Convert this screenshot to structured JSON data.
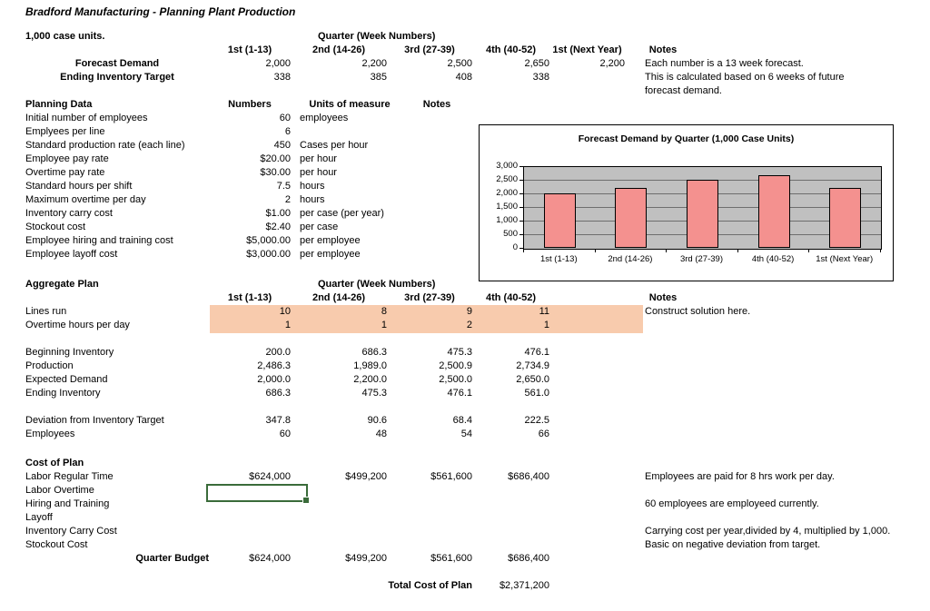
{
  "title": "Bradford Manufacturing - Planning Plant Production",
  "colors": {
    "highlight": "#F8CBAD",
    "selection_border": "#3A6B3A",
    "bar_fill": "#F4918F",
    "plot_bg": "#C0C0C0"
  },
  "forecast": {
    "unit_label": "1,000 case units.",
    "quarter_header": "Quarter (Week Numbers)",
    "columns": [
      "1st (1-13)",
      "2nd (14-26)",
      "3rd (27-39)",
      "4th (40-52)",
      "1st (Next Year)"
    ],
    "notes_header": "Notes",
    "rows": [
      {
        "label": "Forecast Demand",
        "values": [
          "2,000",
          "2,200",
          "2,500",
          "2,650",
          "2,200"
        ],
        "note": "Each number is a 13 week forecast."
      },
      {
        "label": "Ending Inventory Target",
        "values": [
          "338",
          "385",
          "408",
          "338",
          ""
        ],
        "note": "This is calculated based on 6 weeks of future"
      }
    ],
    "note_continuation": "forecast demand."
  },
  "planning": {
    "header": "Planning Data",
    "numbers_header": "Numbers",
    "units_header": "Units of measure",
    "notes_header": "Notes",
    "rows": [
      {
        "label": "Initial number of employees",
        "number": "60",
        "unit": "employees"
      },
      {
        "label": "Emplyees per line",
        "number": "6",
        "unit": ""
      },
      {
        "label": "Standard production rate (each line)",
        "number": "450",
        "unit": "Cases per hour"
      },
      {
        "label": "Employee pay rate",
        "number": "$20.00",
        "unit": "per hour"
      },
      {
        "label": "Overtime pay rate",
        "number": "$30.00",
        "unit": "per hour"
      },
      {
        "label": "Standard hours per shift",
        "number": "7.5",
        "unit": "hours"
      },
      {
        "label": "Maximum overtime per day",
        "number": "2",
        "unit": "hours"
      },
      {
        "label": "Inventory carry cost",
        "number": "$1.00",
        "unit": "per case (per year)"
      },
      {
        "label": "Stockout cost",
        "number": "$2.40",
        "unit": "per case"
      },
      {
        "label": "Employee hiring and training cost",
        "number": "$5,000.00",
        "unit": "per employee"
      },
      {
        "label": "Employee layoff cost",
        "number": "$3,000.00",
        "unit": "per employee"
      }
    ]
  },
  "chart_data": {
    "type": "bar",
    "title": "Forecast Demand by Quarter (1,000 Case Units)",
    "categories": [
      "1st (1-13)",
      "2nd (14-26)",
      "3rd (27-39)",
      "4th (40-52)",
      "1st (Next Year)"
    ],
    "values": [
      2000,
      2200,
      2500,
      2650,
      2200
    ],
    "xlabel": "",
    "ylabel": "",
    "ylim": [
      0,
      3000
    ],
    "ytick_interval": 500,
    "ytick_labels": [
      "3,000",
      "2,500",
      "2,000",
      "1,500",
      "1,000",
      "500",
      "0"
    ],
    "grid": true,
    "legend": false,
    "bar_color": "#F4918F",
    "plot_bg": "#C0C0C0"
  },
  "aggregate": {
    "header": "Aggregate Plan",
    "quarter_header": "Quarter (Week Numbers)",
    "columns": [
      "1st (1-13)",
      "2nd (14-26)",
      "3rd (27-39)",
      "4th (40-52)"
    ],
    "notes_header": "Notes",
    "rows": [
      {
        "label": "Lines run",
        "values": [
          "10",
          "8",
          "9",
          "11"
        ],
        "note": "Construct solution here."
      },
      {
        "label": "Overtime hours per day",
        "values": [
          "1",
          "1",
          "2",
          "1"
        ],
        "note": ""
      },
      {
        "label": "Beginning Inventory",
        "values": [
          "200.0",
          "686.3",
          "475.3",
          "476.1"
        ],
        "note": ""
      },
      {
        "label": "Production",
        "values": [
          "2,486.3",
          "1,989.0",
          "2,500.9",
          "2,734.9"
        ],
        "note": ""
      },
      {
        "label": "Expected Demand",
        "values": [
          "2,000.0",
          "2,200.0",
          "2,500.0",
          "2,650.0"
        ],
        "note": ""
      },
      {
        "label": "Ending Inventory",
        "values": [
          "686.3",
          "475.3",
          "476.1",
          "561.0"
        ],
        "note": ""
      },
      {
        "label": "Deviation from Inventory Target",
        "values": [
          "347.8",
          "90.6",
          "68.4",
          "222.5"
        ],
        "note": ""
      },
      {
        "label": "Employees",
        "values": [
          "60",
          "48",
          "54",
          "66"
        ],
        "note": ""
      }
    ]
  },
  "cost": {
    "header": "Cost of Plan",
    "rows": [
      {
        "label": "Labor Regular Time",
        "values": [
          "$624,000",
          "$499,200",
          "$561,600",
          "$686,400"
        ],
        "note": "Employees are paid for 8 hrs work per day."
      },
      {
        "label": "Labor Overtime",
        "values": [
          "",
          "",
          "",
          ""
        ],
        "note": ""
      },
      {
        "label": "Hiring and Training",
        "values": [
          "",
          "",
          "",
          ""
        ],
        "note": "60 employees are employeed currently."
      },
      {
        "label": "Layoff",
        "values": [
          "",
          "",
          "",
          ""
        ],
        "note": ""
      },
      {
        "label": "Inventory Carry Cost",
        "values": [
          "",
          "",
          "",
          ""
        ],
        "note": "Carrying cost per year,divided by 4, multiplied by 1,000."
      },
      {
        "label": "Stockout Cost",
        "values": [
          "",
          "",
          "",
          ""
        ],
        "note": "Basic on negative deviation from target."
      }
    ],
    "quarter_budget": {
      "label": "Quarter Budget",
      "values": [
        "$624,000",
        "$499,200",
        "$561,600",
        "$686,400"
      ]
    },
    "total": {
      "label": "Total Cost of Plan",
      "value": "$2,371,200"
    }
  }
}
